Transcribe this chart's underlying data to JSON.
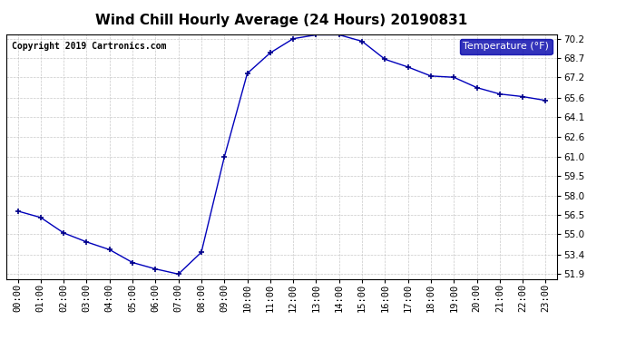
{
  "title": "Wind Chill Hourly Average (24 Hours) 20190831",
  "copyright": "Copyright 2019 Cartronics.com",
  "legend_label": "Temperature (°F)",
  "hours": [
    "00:00",
    "01:00",
    "02:00",
    "03:00",
    "04:00",
    "05:00",
    "06:00",
    "07:00",
    "08:00",
    "09:00",
    "10:00",
    "11:00",
    "12:00",
    "13:00",
    "14:00",
    "15:00",
    "16:00",
    "17:00",
    "18:00",
    "19:00",
    "20:00",
    "21:00",
    "22:00",
    "23:00"
  ],
  "values": [
    56.8,
    56.3,
    55.1,
    54.4,
    53.8,
    52.8,
    52.3,
    51.9,
    53.6,
    61.0,
    67.5,
    69.1,
    70.2,
    70.5,
    70.5,
    70.0,
    68.6,
    68.0,
    67.3,
    67.2,
    66.4,
    65.9,
    65.7,
    65.4
  ],
  "ylim_min": 51.9,
  "ylim_max": 70.2,
  "yticks": [
    51.9,
    53.4,
    55.0,
    56.5,
    58.0,
    59.5,
    61.0,
    62.6,
    64.1,
    65.6,
    67.2,
    68.7,
    70.2
  ],
  "line_color": "#0000bb",
  "marker": "+",
  "marker_color": "#000088",
  "background_color": "#ffffff",
  "plot_bg_color": "#ffffff",
  "grid_color": "#bbbbbb",
  "title_fontsize": 11,
  "title_fontweight": "bold",
  "copyright_fontsize": 7,
  "tick_fontsize": 7.5,
  "legend_bg_color": "#0000aa",
  "legend_text_color": "#ffffff",
  "legend_fontsize": 8
}
